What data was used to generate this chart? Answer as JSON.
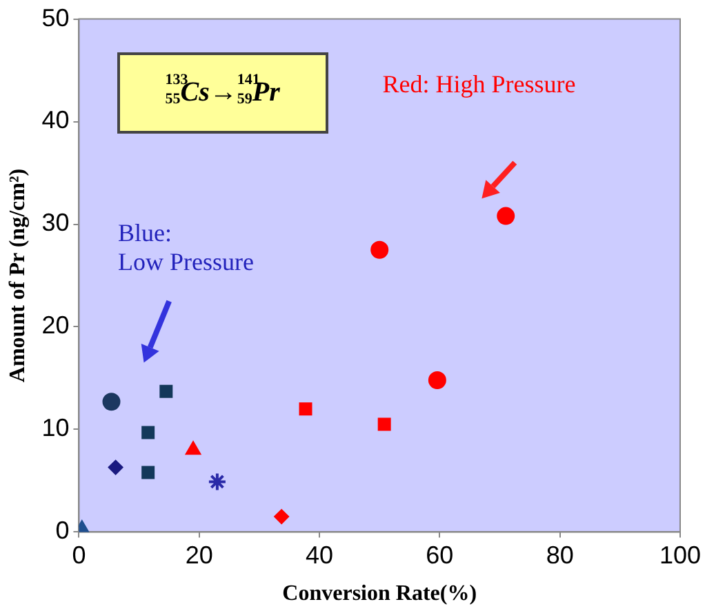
{
  "chart_data": {
    "type": "scatter",
    "xlabel": "Conversion Rate(%)",
    "ylabel": "Amount of Pr (ng/cm²)",
    "xlim": [
      0,
      100
    ],
    "xticks": [
      0,
      20,
      40,
      60,
      80,
      100
    ],
    "ylim": [
      0,
      50
    ],
    "yticks": [
      0,
      10,
      20,
      30,
      40,
      50
    ],
    "grid": false,
    "legend": false,
    "annotations": [
      "$^{133}$$_{55}$Cs→$^{141}$$_{59}$Pr",
      "Red: High Pressure",
      "Blue:\nLow Pressure"
    ],
    "series": [
      {
        "color": "#ff0000",
        "marker": "circle",
        "x": [
          50,
          71,
          59.6
        ],
        "values": [
          27.5,
          30.8,
          14.8
        ]
      },
      {
        "color": "#ff0000",
        "marker": "square",
        "x": [
          37.7,
          50.8
        ],
        "values": [
          12,
          10.5
        ]
      },
      {
        "color": "#ff0000",
        "marker": "triangle",
        "x": [
          19
        ],
        "values": [
          8
        ]
      },
      {
        "color": "#ff0000",
        "marker": "diamond",
        "x": [
          33.7
        ],
        "values": [
          1.5
        ]
      },
      {
        "color": "#1c3860",
        "marker": "circle",
        "x": [
          5.4
        ],
        "values": [
          12.7
        ]
      },
      {
        "color": "#13385a",
        "marker": "square",
        "x": [
          14.5,
          11.5,
          11.5
        ],
        "values": [
          13.7,
          9.7,
          5.8
        ]
      },
      {
        "color": "#1a1a80",
        "marker": "diamond",
        "x": [
          6.1
        ],
        "values": [
          6.3
        ]
      },
      {
        "color": "#2a2aa8",
        "marker": "cross",
        "x": [
          23
        ],
        "values": [
          4.9
        ]
      },
      {
        "color": "#1f4f8f",
        "marker": "triangle",
        "x": [
          0.5
        ],
        "values": [
          0.3
        ]
      }
    ]
  }
}
